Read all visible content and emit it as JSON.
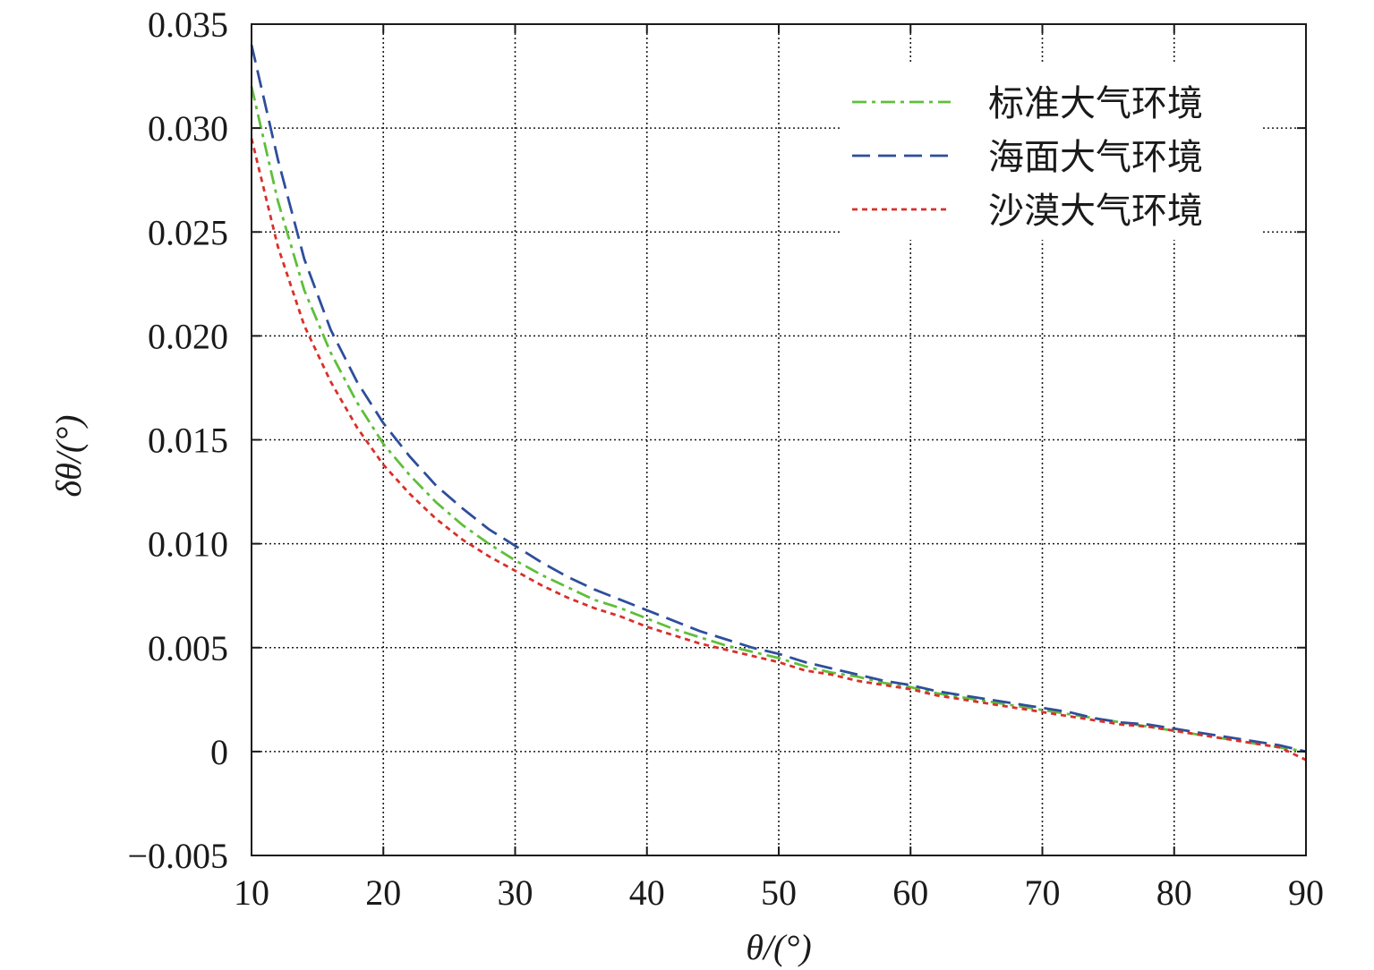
{
  "chart_data": {
    "type": "line",
    "title": "",
    "xlabel": "θ/(°)",
    "ylabel": "δθ/(°)",
    "xlim": [
      10,
      90
    ],
    "ylim": [
      -0.005,
      0.035
    ],
    "xticks": [
      10,
      20,
      30,
      40,
      50,
      60,
      70,
      80,
      90
    ],
    "yticks": [
      -0.005,
      0,
      0.005,
      0.01,
      0.015,
      0.02,
      0.025,
      0.03,
      0.035
    ],
    "xtick_labels": [
      "10",
      "20",
      "30",
      "40",
      "50",
      "60",
      "70",
      "80",
      "90"
    ],
    "ytick_labels": [
      "−0.005",
      "0",
      "0.005",
      "0.010",
      "0.015",
      "0.020",
      "0.025",
      "0.030",
      "0.035"
    ],
    "grid": true,
    "legend_position": "top-right",
    "series": [
      {
        "name": "标准大气环境",
        "color": "#5fbf3a",
        "style": "dash-dot",
        "x": [
          10,
          12,
          14,
          16,
          18,
          20,
          22,
          24,
          26,
          28,
          30,
          32,
          34,
          36,
          38,
          40,
          42,
          44,
          46,
          48,
          50,
          52,
          54,
          56,
          58,
          60,
          62,
          64,
          66,
          68,
          70,
          72,
          74,
          76,
          78,
          80,
          82,
          84,
          86,
          88,
          90
        ],
        "y": [
          0.032,
          0.0265,
          0.0222,
          0.0192,
          0.0168,
          0.0148,
          0.0133,
          0.012,
          0.0109,
          0.01,
          0.0092,
          0.0085,
          0.0079,
          0.0073,
          0.0069,
          0.0064,
          0.0059,
          0.0055,
          0.0051,
          0.0048,
          0.0045,
          0.0041,
          0.0038,
          0.0036,
          0.0033,
          0.0031,
          0.0028,
          0.0026,
          0.0024,
          0.0022,
          0.002,
          0.0018,
          0.0016,
          0.0014,
          0.0012,
          0.001,
          0.0008,
          0.0006,
          0.0004,
          0.0002,
          0.0
        ]
      },
      {
        "name": "海面大气环境",
        "color": "#2e4e9c",
        "style": "dashed",
        "x": [
          10,
          12,
          14,
          16,
          18,
          20,
          22,
          24,
          26,
          28,
          30,
          32,
          34,
          36,
          38,
          40,
          42,
          44,
          46,
          48,
          50,
          52,
          54,
          56,
          58,
          60,
          62,
          64,
          66,
          68,
          70,
          72,
          74,
          76,
          78,
          80,
          82,
          84,
          86,
          88,
          90
        ],
        "y": [
          0.034,
          0.0285,
          0.0237,
          0.0203,
          0.0178,
          0.0158,
          0.0142,
          0.0128,
          0.0117,
          0.0107,
          0.0099,
          0.0091,
          0.0084,
          0.0078,
          0.0073,
          0.0068,
          0.0063,
          0.0058,
          0.0054,
          0.005,
          0.0047,
          0.0043,
          0.004,
          0.0037,
          0.0034,
          0.0032,
          0.0029,
          0.0027,
          0.0025,
          0.0023,
          0.0021,
          0.0019,
          0.0016,
          0.0014,
          0.0013,
          0.0011,
          0.0009,
          0.0007,
          0.0005,
          0.0003,
          0.0
        ]
      },
      {
        "name": "沙漠大气环境",
        "color": "#d9302b",
        "style": "dotted",
        "x": [
          10,
          12,
          14,
          16,
          18,
          20,
          22,
          24,
          26,
          28,
          30,
          32,
          34,
          36,
          38,
          40,
          42,
          44,
          46,
          48,
          50,
          52,
          54,
          56,
          58,
          60,
          62,
          64,
          66,
          68,
          70,
          72,
          74,
          76,
          78,
          80,
          82,
          84,
          86,
          88,
          90
        ],
        "y": [
          0.0295,
          0.0243,
          0.0205,
          0.0178,
          0.0156,
          0.0138,
          0.0124,
          0.0112,
          0.0102,
          0.0094,
          0.0087,
          0.008,
          0.0074,
          0.0069,
          0.0065,
          0.006,
          0.0056,
          0.0052,
          0.0049,
          0.0046,
          0.0043,
          0.0039,
          0.0037,
          0.0034,
          0.0032,
          0.003,
          0.0027,
          0.0025,
          0.0023,
          0.0021,
          0.0019,
          0.0017,
          0.0015,
          0.0013,
          0.0012,
          0.001,
          0.0008,
          0.0006,
          0.0004,
          0.0002,
          -0.0004
        ]
      }
    ]
  }
}
